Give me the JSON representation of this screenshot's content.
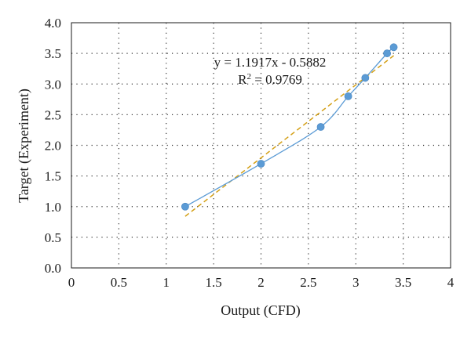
{
  "chart_data": {
    "type": "scatter",
    "title": "",
    "xlabel": "Output (CFD)",
    "ylabel": "Target (Experiment)",
    "xlim": [
      0,
      4
    ],
    "ylim": [
      0,
      4
    ],
    "x_ticks": [
      0,
      0.5,
      1,
      1.5,
      2,
      2.5,
      3,
      3.5,
      4
    ],
    "x_tick_labels": [
      "0",
      "0.5",
      "1",
      "1.5",
      "2",
      "2.5",
      "3",
      "3.5",
      "4"
    ],
    "y_ticks": [
      0,
      0.5,
      1,
      1.5,
      2,
      2.5,
      3,
      3.5,
      4
    ],
    "y_tick_labels": [
      "0.0",
      "0.5",
      "1.0",
      "1.5",
      "2.0",
      "2.5",
      "3.0",
      "3.5",
      "4.0"
    ],
    "grid": "dotted",
    "series": [
      {
        "kind": "scatter-smooth",
        "color": "#5b9bd5",
        "points": [
          [
            1.2,
            1.0
          ],
          [
            2.0,
            1.7
          ],
          [
            2.63,
            2.3
          ],
          [
            2.92,
            2.8
          ],
          [
            3.1,
            3.1
          ],
          [
            3.33,
            3.5
          ],
          [
            3.4,
            3.6
          ]
        ]
      },
      {
        "kind": "trendline",
        "style": "dashed",
        "color": "#d4a017",
        "slope": 1.1917,
        "intercept": -0.5882,
        "x_range": [
          1.2,
          3.4
        ]
      }
    ],
    "annotations": {
      "equation": "y = 1.1917x - 0.5882",
      "r2_prefix": "R",
      "r2_sup": "2",
      "r2_value": " = 0.9769"
    }
  }
}
